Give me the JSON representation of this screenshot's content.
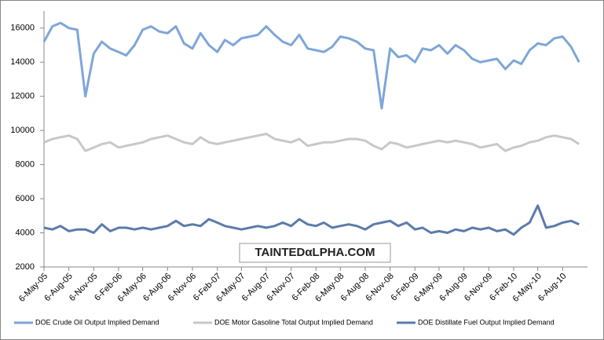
{
  "chart_data": {
    "type": "line",
    "watermark": "TAINTEDαLPHA.COM",
    "x": [
      "6-May-05",
      "6-Jun-05",
      "6-Jul-05",
      "6-Aug-05",
      "6-Sep-05",
      "6-Oct-05",
      "6-Nov-05",
      "6-Dec-05",
      "6-Jan-06",
      "6-Feb-06",
      "6-Mar-06",
      "6-Apr-06",
      "6-May-06",
      "6-Jun-06",
      "6-Jul-06",
      "6-Aug-06",
      "6-Sep-06",
      "6-Oct-06",
      "6-Nov-06",
      "6-Dec-06",
      "6-Jan-07",
      "6-Feb-07",
      "6-Mar-07",
      "6-Apr-07",
      "6-May-07",
      "6-Jun-07",
      "6-Jul-07",
      "6-Aug-07",
      "6-Sep-07",
      "6-Oct-07",
      "6-Nov-07",
      "6-Dec-07",
      "6-Jan-08",
      "6-Feb-08",
      "6-Mar-08",
      "6-Apr-08",
      "6-May-08",
      "6-Jun-08",
      "6-Jul-08",
      "6-Aug-08",
      "6-Sep-08",
      "6-Oct-08",
      "6-Nov-08",
      "6-Dec-08",
      "6-Jan-09",
      "6-Feb-09",
      "6-Mar-09",
      "6-Apr-09",
      "6-May-09",
      "6-Jun-09",
      "6-Jul-09",
      "6-Aug-09",
      "6-Sep-09",
      "6-Oct-09",
      "6-Nov-09",
      "6-Dec-09",
      "6-Jan-10",
      "6-Feb-10",
      "6-Mar-10",
      "6-Apr-10",
      "6-May-10",
      "6-Jun-10",
      "6-Jul-10",
      "6-Aug-10",
      "6-Sep-10",
      "6-Oct-10"
    ],
    "series": [
      {
        "name": "DOE Crude Oil Output Implied Demand",
        "color": "#7ea6d8",
        "values": [
          15200,
          16100,
          16300,
          16000,
          15900,
          12000,
          14500,
          15200,
          14800,
          14600,
          14400,
          15000,
          15900,
          16100,
          15800,
          15700,
          16100,
          15100,
          14800,
          15700,
          15000,
          14600,
          15300,
          15000,
          15400,
          15500,
          15600,
          16100,
          15600,
          15200,
          15000,
          15600,
          14800,
          14700,
          14600,
          14900,
          15500,
          15400,
          15200,
          14800,
          14700,
          11300,
          14800,
          14300,
          14400,
          14000,
          14800,
          14700,
          15000,
          14500,
          15000,
          14700,
          14200,
          14000,
          14100,
          14200,
          13600,
          14100,
          13900,
          14700,
          15100,
          15000,
          15400,
          15500,
          14900,
          14000
        ]
      },
      {
        "name": "DOE Motor Gasoline Total Output Implied Demand",
        "color": "#c8c8c8",
        "values": [
          9300,
          9500,
          9600,
          9700,
          9500,
          8800,
          9000,
          9200,
          9300,
          9000,
          9100,
          9200,
          9300,
          9500,
          9600,
          9700,
          9500,
          9300,
          9200,
          9600,
          9300,
          9200,
          9300,
          9400,
          9500,
          9600,
          9700,
          9800,
          9500,
          9400,
          9300,
          9500,
          9100,
          9200,
          9300,
          9300,
          9400,
          9500,
          9500,
          9400,
          9100,
          8900,
          9300,
          9200,
          9000,
          9100,
          9200,
          9300,
          9400,
          9300,
          9400,
          9300,
          9200,
          9000,
          9100,
          9200,
          8800,
          9000,
          9100,
          9300,
          9400,
          9600,
          9700,
          9600,
          9500,
          9200
        ]
      },
      {
        "name": "DOE Distillate Fuel Output Implied Demand",
        "color": "#5b7bab",
        "values": [
          4300,
          4200,
          4400,
          4100,
          4200,
          4200,
          4000,
          4500,
          4100,
          4300,
          4300,
          4200,
          4300,
          4200,
          4300,
          4400,
          4700,
          4400,
          4500,
          4400,
          4800,
          4600,
          4400,
          4300,
          4200,
          4300,
          4400,
          4300,
          4400,
          4600,
          4400,
          4800,
          4500,
          4400,
          4600,
          4300,
          4400,
          4500,
          4400,
          4200,
          4500,
          4600,
          4700,
          4400,
          4600,
          4200,
          4300,
          4000,
          4100,
          4000,
          4200,
          4100,
          4300,
          4200,
          4300,
          4100,
          4200,
          3900,
          4300,
          4600,
          5600,
          4300,
          4400,
          4600,
          4700,
          4500
        ]
      }
    ],
    "xlim": [
      "6-May-05",
      "6-Nov-10"
    ],
    "xticks": [
      "6-May-05",
      "6-Aug-05",
      "6-Nov-05",
      "6-Feb-06",
      "6-May-06",
      "6-Aug-06",
      "6-Nov-06",
      "6-Feb-07",
      "6-May-07",
      "6-Aug-07",
      "6-Nov-07",
      "6-Feb-08",
      "6-May-08",
      "6-Aug-08",
      "6-Nov-08",
      "6-Feb-09",
      "6-May-09",
      "6-Aug-09",
      "6-Nov-09",
      "6-Feb-10",
      "6-May-10",
      "6-Aug-10"
    ],
    "ylim": [
      2000,
      17000
    ],
    "yticks": [
      2000,
      4000,
      6000,
      8000,
      10000,
      12000,
      14000,
      16000
    ],
    "grid": false,
    "legend": "bottom"
  }
}
